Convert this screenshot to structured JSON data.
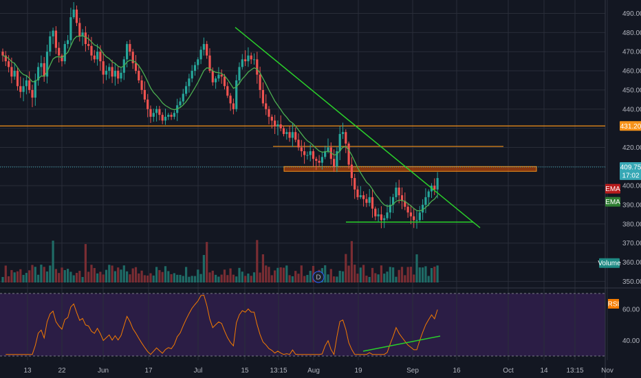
{
  "colors": {
    "background": "#131722",
    "grid": "#2a2e39",
    "up": "#26a69a",
    "down": "#ef5350",
    "volume_up": "#1f6b66",
    "volume_down": "#7a2d33",
    "ema": "#4caf50",
    "trendline": "#2ad12a",
    "orange_line": "#f7931a",
    "resistance_zone": "#e65100",
    "current_price_line": "#37a8b5",
    "rsi_line": "#f57c00",
    "rsi_band": "#2b1d45",
    "axis_text": "#b2b5be"
  },
  "chart_data": [
    {
      "type": "candlestick",
      "panel": "price",
      "x_ticks": [
        "13",
        "22",
        "Jun",
        "17",
        "Jul",
        "15",
        "13:15",
        "Aug",
        "19",
        "Sep",
        "16",
        "Oct",
        "14",
        "13:15",
        "Nov"
      ],
      "y_ticks": [
        490,
        480,
        470,
        460,
        450,
        440,
        430,
        420,
        410,
        400,
        390,
        380,
        370,
        360,
        350
      ],
      "ylim": [
        348,
        497
      ],
      "close_series": [
        468,
        465,
        462,
        457,
        460,
        452,
        449,
        452,
        455,
        450,
        446,
        455,
        462,
        464,
        457,
        470,
        478,
        481,
        472,
        468,
        465,
        474,
        476,
        488,
        492,
        485,
        478,
        480,
        474,
        473,
        468,
        466,
        470,
        465,
        458,
        460,
        462,
        457,
        460,
        456,
        459,
        466,
        474,
        470,
        464,
        460,
        455,
        450,
        445,
        440,
        436,
        438,
        440,
        437,
        434,
        436,
        437,
        436,
        438,
        442,
        444,
        448,
        452,
        456,
        460,
        463,
        466,
        471,
        474,
        468,
        460,
        454,
        456,
        458,
        457,
        452,
        447,
        443,
        440,
        455,
        462,
        466,
        465,
        468,
        466,
        466,
        458,
        450,
        443,
        440,
        436,
        434,
        431,
        432,
        430,
        427,
        428,
        425,
        428,
        424,
        420,
        418,
        416,
        416,
        418,
        414,
        413,
        412,
        415,
        418,
        420,
        414,
        410,
        418,
        427,
        428,
        422,
        411,
        404,
        398,
        394,
        395,
        393,
        391,
        394,
        388,
        384,
        385,
        382,
        383,
        386,
        390,
        394,
        399,
        395,
        392,
        389,
        386,
        384,
        382,
        382,
        386,
        390,
        394,
        397,
        400,
        398,
        404
      ],
      "current_price": 409.75,
      "current_price_countdown": "17:02",
      "horizontal_levels": [
        431.2,
        420.5
      ],
      "resistance_zone": [
        407.5,
        410
      ],
      "descending_trendline": [
        [
          3,
          482
        ],
        [
          127,
          378
        ]
      ],
      "support_line": [
        [
          1,
          381
        ],
        [
          138,
          381
        ]
      ],
      "overlays": [
        {
          "name": "EMA",
          "color": "#4caf50"
        }
      ],
      "tags": [
        {
          "label": "431.20",
          "value": 431.2,
          "color": "#f7931a"
        },
        {
          "label": "409.75",
          "value": 409.75,
          "color": "#37a8b5"
        },
        {
          "label": "17:02",
          "value": 405.5,
          "color": "#37a8b5"
        },
        {
          "label": "EMA",
          "value": 398.4,
          "color": "#b71c1c"
        },
        {
          "label": "EMA",
          "value": 391.6,
          "color": "#2e7d32"
        },
        {
          "label": "Volume",
          "value": 359.6,
          "color": "#1f8a84"
        }
      ],
      "event_marker": "D"
    },
    {
      "type": "line",
      "panel": "rsi",
      "name": "RSI",
      "y_ticks": [
        60,
        40
      ],
      "ylim": [
        30,
        70
      ],
      "band": [
        30,
        70
      ]
    }
  ]
}
